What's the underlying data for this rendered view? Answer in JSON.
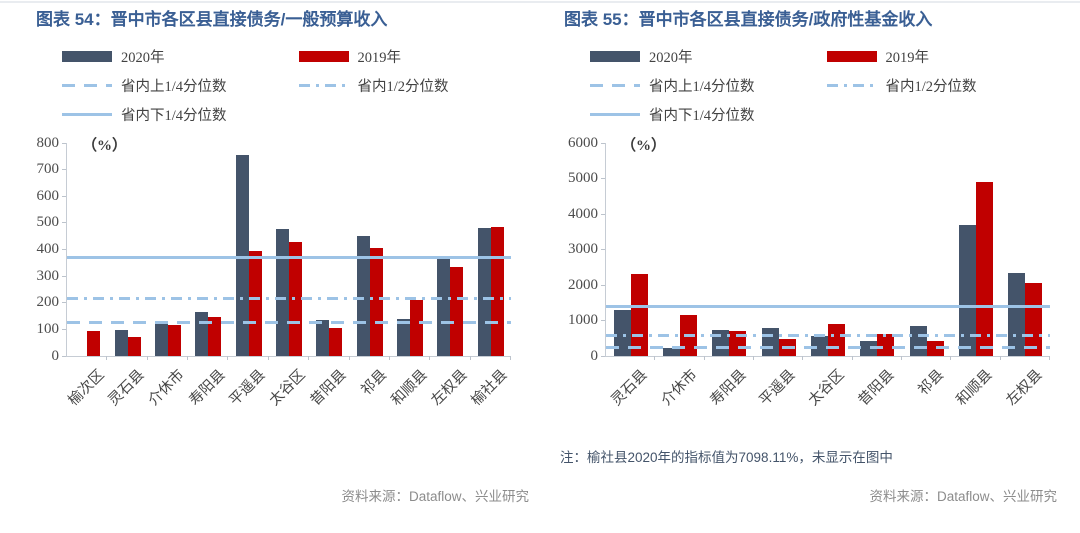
{
  "page": {
    "background": "#ffffff",
    "divider_color": "#e9ecf0"
  },
  "charts": [
    {
      "title": "图表 54：晋中市各区县直接债务/一般预算收入",
      "unit_label": "（%）",
      "legend": {
        "bar2020": "2020年",
        "bar2019": "2019年",
        "upper_quartile": "省内上1/4分位数",
        "median": "省内1/2分位数",
        "lower_quartile": "省内下1/4分位数"
      },
      "source": "资料来源：Dataflow、兴业研究",
      "chart_data": {
        "type": "bar",
        "title": "图表 54：晋中市各区县直接债务/一般预算收入",
        "ylabel": "（%）",
        "ylim": [
          0,
          800
        ],
        "ytick_step": 100,
        "grid": false,
        "legend_position": "top",
        "categories": [
          "榆次区",
          "灵石县",
          "介休市",
          "寿阳县",
          "平遥县",
          "太谷区",
          "昔阳县",
          "祁县",
          "和顺县",
          "左权县",
          "榆社县"
        ],
        "series": [
          {
            "name": "2020年",
            "color": "#44546A",
            "values": [
              0,
              98,
              130,
              165,
              755,
              478,
              135,
              450,
              140,
              365,
              480
            ]
          },
          {
            "name": "2019年",
            "color": "#C00000",
            "values": [
              95,
              70,
              117,
              145,
              393,
              428,
              105,
              405,
              210,
              336,
              485
            ]
          }
        ],
        "ref_lines": [
          {
            "name": "省内上1/4分位数",
            "style": "dashed",
            "color": "#9DC3E6",
            "value": 125
          },
          {
            "name": "省内1/2分位数",
            "style": "dashdot",
            "color": "#9DC3E6",
            "value": 215
          },
          {
            "name": "省内下1/4分位数",
            "style": "solid",
            "color": "#9DC3E6",
            "value": 371
          }
        ]
      }
    },
    {
      "title": "图表 55：晋中市各区县直接债务/政府性基金收入",
      "unit_label": "（%）",
      "legend": {
        "bar2020": "2020年",
        "bar2019": "2019年",
        "upper_quartile": "省内上1/4分位数",
        "median": "省内1/2分位数",
        "lower_quartile": "省内下1/4分位数"
      },
      "note": "注：榆社县2020年的指标值为7098.11%，未显示在图中",
      "source": "资料来源：Dataflow、兴业研究",
      "chart_data": {
        "type": "bar",
        "title": "图表 55：晋中市各区县直接债务/政府性基金收入",
        "ylabel": "（%）",
        "ylim": [
          0,
          6000
        ],
        "ytick_step": 1000,
        "grid": false,
        "legend_position": "top",
        "categories": [
          "灵石县",
          "介休市",
          "寿阳县",
          "平遥县",
          "太谷区",
          "昔阳县",
          "祁县",
          "和顺县",
          "左权县"
        ],
        "series": [
          {
            "name": "2020年",
            "color": "#44546A",
            "values": [
              1300,
              230,
              740,
              800,
              550,
              430,
              840,
              3700,
              2350
            ]
          },
          {
            "name": "2019年",
            "color": "#C00000",
            "values": [
              2300,
              1150,
              700,
              480,
              890,
              610,
              430,
              4900,
              2050
            ]
          }
        ],
        "ref_lines": [
          {
            "name": "省内上1/4分位数",
            "style": "dashed",
            "color": "#9DC3E6",
            "value": 240
          },
          {
            "name": "省内1/2分位数",
            "style": "dashdot",
            "color": "#9DC3E6",
            "value": 570
          },
          {
            "name": "省内下1/4分位数",
            "style": "solid",
            "color": "#9DC3E6",
            "value": 1390
          }
        ]
      }
    }
  ]
}
